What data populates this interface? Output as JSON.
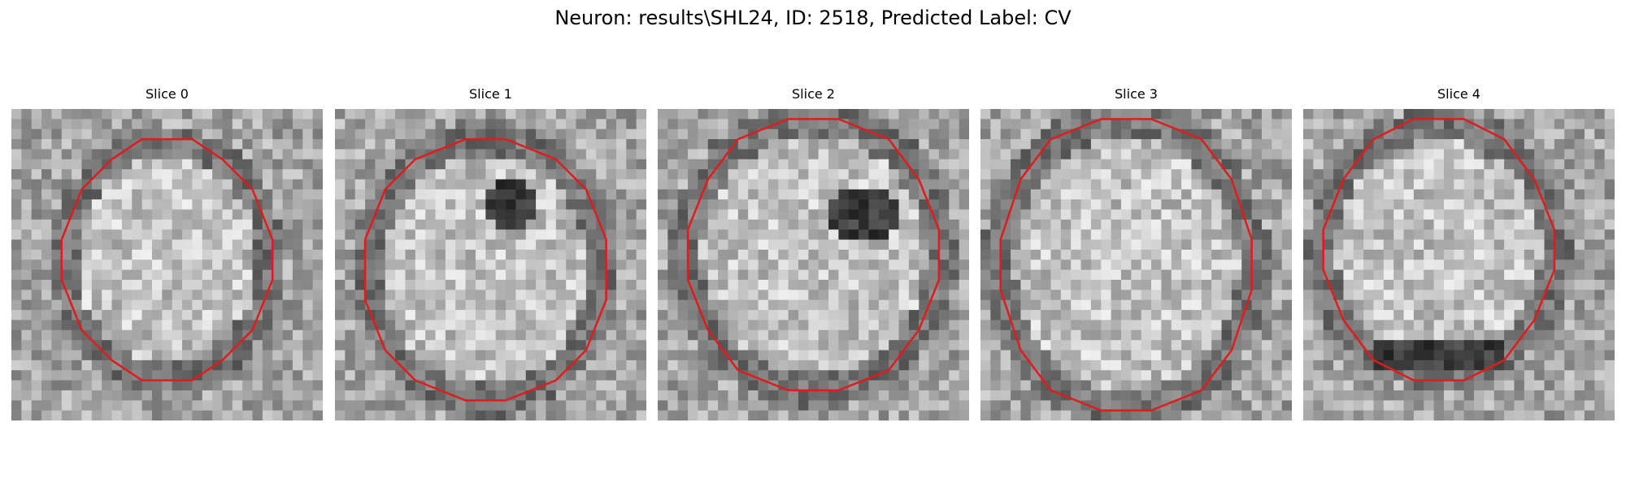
{
  "figure": {
    "title": "Neuron: results\\SHL24, ID: 2518, Predicted Label: CV",
    "panels": [
      {
        "title": "Slice 0",
        "contour_color": "#e31a1c"
      },
      {
        "title": "Slice 1",
        "contour_color": "#e31a1c"
      },
      {
        "title": "Slice 2",
        "contour_color": "#e31a1c"
      },
      {
        "title": "Slice 3",
        "contour_color": "#e31a1c"
      },
      {
        "title": "Slice 4",
        "contour_color": "#e31a1c"
      }
    ],
    "colormap": "gray"
  }
}
